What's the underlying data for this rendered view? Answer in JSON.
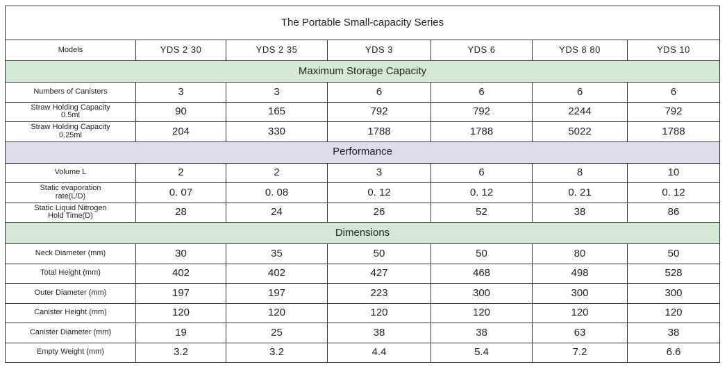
{
  "table": {
    "title": "The Portable Small-capacity Series",
    "header": {
      "label": "Models",
      "models": [
        "YDS 2 30",
        "YDS 2 35",
        "YDS 3",
        "YDS 6",
        "YDS 8 80",
        "YDS 10"
      ]
    },
    "sections": [
      {
        "title": "Maximum Storage Capacity",
        "rows": [
          {
            "label": "Numbers of Canisters",
            "cells": [
              3,
              3,
              6,
              6,
              6,
              6
            ]
          },
          {
            "label": "Straw Holding Capacity\n0.5ml",
            "cells": [
              90,
              165,
              792,
              792,
              2244,
              792
            ]
          },
          {
            "label": "Straw Holding Capacity\n0.25ml",
            "cells": [
              204,
              330,
              1788,
              1788,
              5022,
              1788
            ]
          }
        ]
      },
      {
        "title": "Performance",
        "rows": [
          {
            "label": "Volume L",
            "cells": [
              2,
              2,
              3,
              6,
              8,
              10
            ]
          },
          {
            "label": "Static evaporation\nrate(L/D)",
            "cells": [
              "0. 07",
              "0. 08",
              "0. 12",
              "0. 12",
              "0. 21",
              "0. 12"
            ]
          },
          {
            "label": "Static Liquid Nitrogen\nHold Time(D)",
            "cells": [
              28,
              24,
              26,
              52,
              38,
              86
            ]
          }
        ]
      },
      {
        "title": "Dimensions",
        "rows": [
          {
            "label": "Neck Diameter (mm)",
            "cells": [
              30,
              35,
              50,
              50,
              80,
              50
            ]
          },
          {
            "label": "Total Height (mm)",
            "cells": [
              402,
              402,
              427,
              468,
              498,
              528
            ]
          },
          {
            "label": "Outer Diameter (mm)",
            "cells": [
              197,
              197,
              223,
              300,
              300,
              300
            ]
          },
          {
            "label": "Canister Height (mm)",
            "cells": [
              120,
              120,
              120,
              120,
              120,
              120
            ]
          },
          {
            "label": "Canister Diameter (mm)",
            "cells": [
              19,
              25,
              38,
              38,
              63,
              38
            ]
          },
          {
            "label": "Empty Weight (mm)",
            "cells": [
              3.2,
              3.2,
              4.4,
              5.4,
              7.2,
              6.6
            ]
          }
        ]
      }
    ]
  }
}
